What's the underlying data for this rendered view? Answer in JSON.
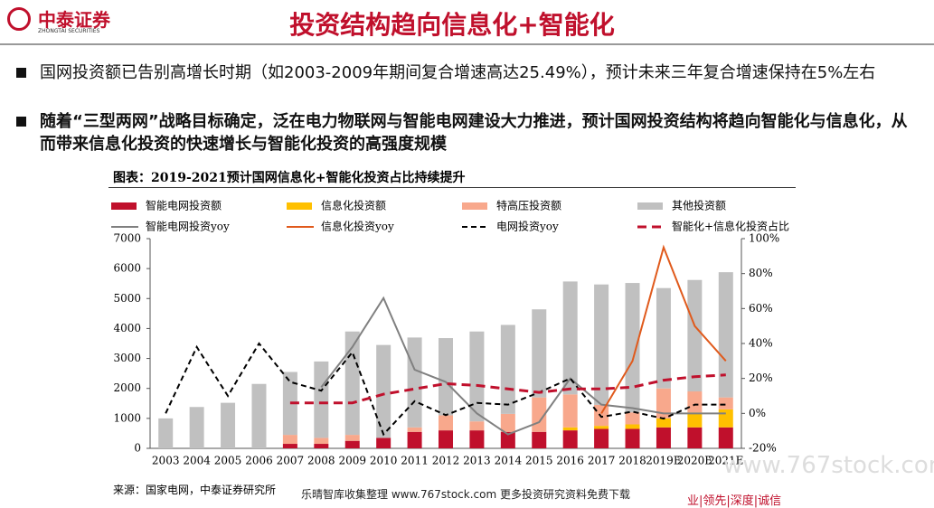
{
  "header": {
    "logo": "中泰证券",
    "logo_sub": "ZHONGTAI SECURITIES",
    "title": "投资结构趋向信息化+智能化"
  },
  "bullets": [
    "国网投资额已告别高增长时期（如2003-2009年期间复合增速高达25.49%），预计未来三年复合增速保持在5%左右",
    "随着“三型两网”战略目标确定，泛在电力物联网与智能电网建设大力推进，预计国网投资结构将趋向智能化与信息化，从而带来信息化投资的快速增长与智能化投资的高强度规模"
  ],
  "chart_data": {
    "type": "bar",
    "title": "图表：2019-2021预计国网信息化+智能化投资占比持续提升",
    "categories": [
      "2003",
      "2004",
      "2005",
      "2006",
      "2007",
      "2008",
      "2009",
      "2010",
      "2011",
      "2012",
      "2013",
      "2014",
      "2015",
      "2016",
      "2017",
      "2018",
      "2019E",
      "2020E",
      "2021E"
    ],
    "series": [
      {
        "name": "智能电网投资额",
        "type": "bar",
        "color": "#c0102c",
        "values": [
          0,
          0,
          0,
          0,
          150,
          150,
          250,
          350,
          550,
          600,
          600,
          550,
          550,
          600,
          650,
          650,
          700,
          700,
          700
        ]
      },
      {
        "name": "信息化投资额",
        "type": "bar",
        "color": "#ffc000",
        "values": [
          0,
          0,
          0,
          0,
          0,
          0,
          0,
          0,
          0,
          0,
          0,
          0,
          0,
          100,
          100,
          150,
          300,
          500,
          600
        ]
      },
      {
        "name": "特高压投资额",
        "type": "bar",
        "color": "#f8a88c",
        "values": [
          0,
          0,
          0,
          0,
          300,
          200,
          200,
          0,
          150,
          500,
          300,
          600,
          1150,
          1100,
          700,
          400,
          1000,
          700,
          400
        ]
      },
      {
        "name": "其他投资额",
        "type": "bar",
        "color": "#c0c0c0",
        "values": [
          1000,
          1380,
          1520,
          2150,
          2100,
          2550,
          3450,
          3100,
          3000,
          2580,
          3000,
          2970,
          2940,
          3770,
          4020,
          4320,
          3350,
          3720,
          4180
        ]
      },
      {
        "name": "智能电网投资yoy",
        "type": "line",
        "axis": "y2",
        "color": "#808080",
        "dash": "solid",
        "values": [
          null,
          null,
          null,
          null,
          null,
          15,
          38,
          66,
          25,
          18,
          0,
          -12,
          -5,
          20,
          5,
          3,
          0,
          0,
          0
        ]
      },
      {
        "name": "信息化投资yoy",
        "type": "line",
        "axis": "y2",
        "color": "#e05a1c",
        "dash": "solid",
        "values": [
          null,
          null,
          null,
          null,
          null,
          null,
          null,
          null,
          null,
          null,
          null,
          null,
          null,
          null,
          0,
          30,
          95,
          50,
          30
        ]
      },
      {
        "name": "电网投资yoy",
        "type": "line",
        "axis": "y2",
        "color": "#000000",
        "dash": "dashed",
        "values": [
          0,
          38,
          10,
          40,
          18,
          13,
          35,
          -12,
          7,
          -1,
          6,
          5,
          12,
          20,
          -2,
          1,
          -3,
          5,
          5
        ]
      },
      {
        "name": "智能化+信息化投资占比",
        "type": "line",
        "axis": "y2",
        "color": "#c0102c",
        "dash": "dashed-thick",
        "values": [
          null,
          null,
          null,
          null,
          6,
          6,
          6,
          11,
          14,
          17,
          16,
          14,
          12,
          14,
          14,
          15,
          19,
          21,
          22
        ]
      }
    ],
    "ylim": [
      0,
      7000
    ],
    "yticks": [
      0,
      1000,
      2000,
      3000,
      4000,
      5000,
      6000,
      7000
    ],
    "y2lim": [
      -20,
      100
    ],
    "y2ticks": [
      {
        "value": -20,
        "label": "-20%"
      },
      {
        "value": 0,
        "label": "0%"
      },
      {
        "value": 20,
        "label": "20%"
      },
      {
        "value": 40,
        "label": "40%"
      },
      {
        "value": 60,
        "label": "60%"
      },
      {
        "value": 80,
        "label": "80%"
      },
      {
        "value": 100,
        "label": "100%"
      }
    ],
    "grid": false,
    "source": "来源：国家电网，中泰证券研究所"
  },
  "footer": {
    "watermark": "乐晴智库收集整理 www.767stock.com 更多投资研究资料免费下载",
    "site": "www.767stock.com",
    "motto": "业|领先|深度|诚信"
  }
}
